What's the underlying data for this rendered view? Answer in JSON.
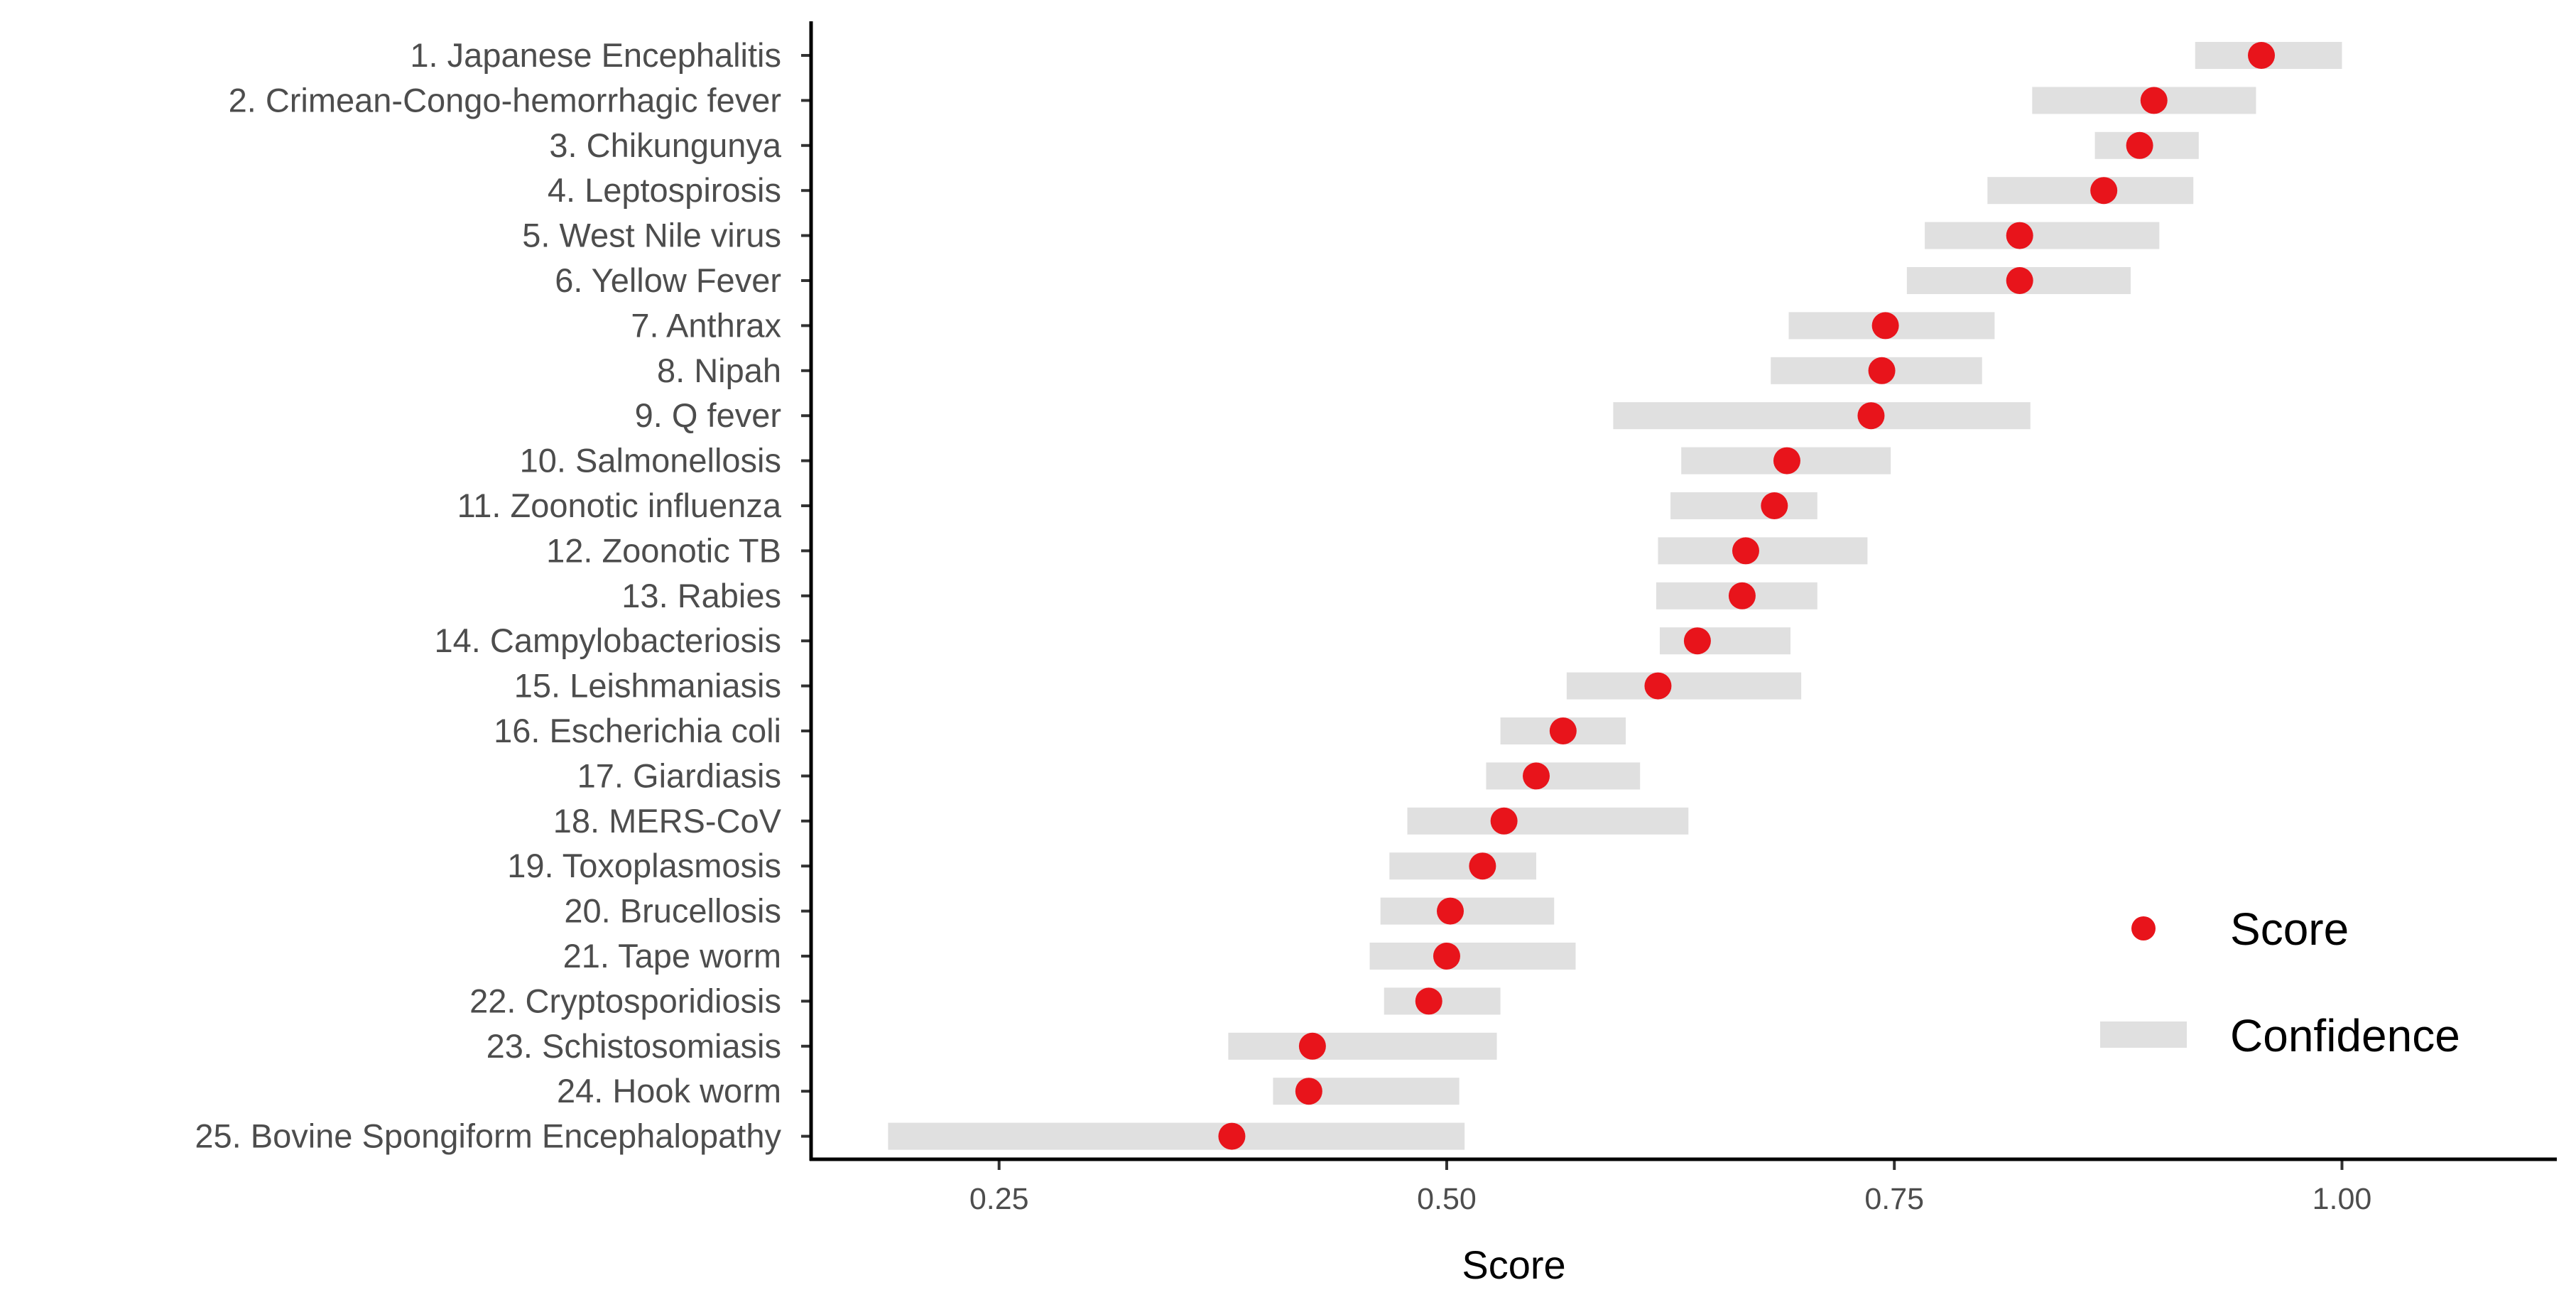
{
  "chart_data": {
    "type": "scatter",
    "xlabel": "Score",
    "ylabel": "",
    "xlim": [
      0.145,
      1.12
    ],
    "xticks": [
      0.25,
      0.5,
      0.75,
      1.0
    ],
    "xtick_labels": [
      "0.25",
      "0.50",
      "0.75",
      "1.00"
    ],
    "grid": false,
    "legend_position": "bottom-right",
    "legend": [
      {
        "name": "Score",
        "symbol": "point",
        "color": "#e8141b"
      },
      {
        "name": "Confidence",
        "symbol": "bar",
        "color": "#e0e0e0"
      }
    ],
    "categories": [
      "1. Japanese Encephalitis",
      "2. Crimean-Congo-hemorrhagic fever",
      "3. Chikungunya",
      "4. Leptospirosis",
      "5. West Nile virus",
      "6. Yellow Fever",
      "7. Anthrax",
      "8. Nipah",
      "9. Q fever",
      "10. Salmonellosis",
      "11. Zoonotic influenza",
      "12. Zoonotic TB",
      "13. Rabies",
      "14. Campylobacteriosis",
      "15. Leishmaniasis",
      "16. Escherichia coli",
      "17. Giardiasis",
      "18. MERS-CoV",
      "19. Toxoplasmosis",
      "20. Brucellosis",
      "21. Tape worm",
      "22. Cryptosporidiosis",
      "23. Schistosomiasis",
      "24. Hook worm",
      "25. Bovine Spongiform Encephalopathy"
    ],
    "series": [
      {
        "values": [
          0.955,
          0.895,
          0.887,
          0.867,
          0.82,
          0.82,
          0.745,
          0.743,
          0.737,
          0.69,
          0.683,
          0.667,
          0.665,
          0.64,
          0.618,
          0.565,
          0.55,
          0.532,
          0.52,
          0.502,
          0.5,
          0.49,
          0.425,
          0.423,
          0.38
        ],
        "lower": [
          0.918,
          0.827,
          0.862,
          0.802,
          0.767,
          0.757,
          0.691,
          0.681,
          0.593,
          0.631,
          0.625,
          0.618,
          0.617,
          0.619,
          0.567,
          0.53,
          0.522,
          0.478,
          0.468,
          0.463,
          0.457,
          0.465,
          0.378,
          0.403,
          0.188
        ],
        "upper": [
          1.0,
          0.952,
          0.92,
          0.917,
          0.898,
          0.882,
          0.806,
          0.799,
          0.826,
          0.748,
          0.707,
          0.735,
          0.707,
          0.692,
          0.698,
          0.6,
          0.608,
          0.635,
          0.55,
          0.56,
          0.572,
          0.53,
          0.528,
          0.507,
          0.51
        ]
      }
    ]
  }
}
